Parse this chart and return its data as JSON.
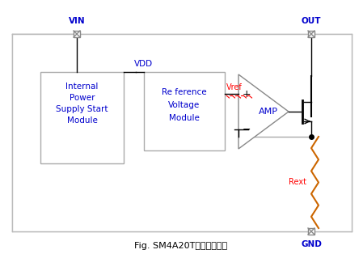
{
  "title": "Fig. SM4A20T内部功能框图",
  "bg_color": "#ffffff",
  "line_color": "#000000",
  "gray_color": "#aaaaaa",
  "blue_color": "#0000cd",
  "red_color": "#ff0000",
  "orange_color": "#cc6600",
  "label_vin": "VIN",
  "label_out": "OUT",
  "label_vdd": "VDD",
  "label_vref": "Vref",
  "label_amp": "AMP",
  "label_gnd": "GND",
  "label_rext": "Rext",
  "figsize": [
    4.49,
    3.14
  ],
  "dpi": 100
}
